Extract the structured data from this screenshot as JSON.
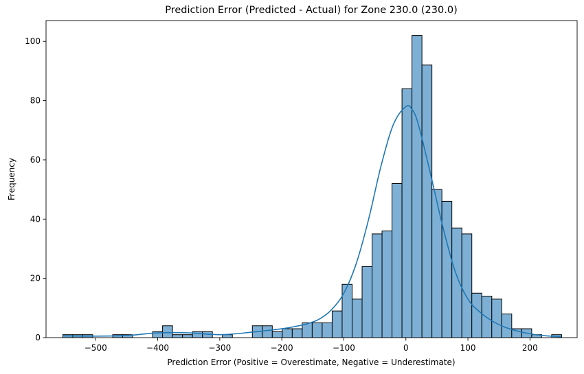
{
  "chart_data": {
    "type": "bar",
    "title": "Prediction Error (Predicted - Actual) for Zone 230.0 (230.0)",
    "xlabel": "Prediction Error (Positive = Overestimate, Negative = Underestimate)",
    "ylabel": "Frequency",
    "xlim": [
      -580,
      276
    ],
    "ylim": [
      0,
      107
    ],
    "xticks": [
      -500,
      -400,
      -300,
      -200,
      -100,
      0,
      100,
      200
    ],
    "yticks": [
      0,
      20,
      40,
      60,
      80,
      100
    ],
    "grid": false,
    "bin_start": -553,
    "bin_width": 16.08,
    "counts": [
      1,
      1,
      1,
      0,
      0,
      1,
      1,
      0,
      0,
      2,
      4,
      1,
      1,
      2,
      2,
      0,
      1,
      0,
      0,
      4,
      4,
      2,
      3,
      3,
      5,
      5,
      5,
      9,
      18,
      13,
      24,
      35,
      36,
      52,
      84,
      102,
      92,
      50,
      46,
      37,
      35,
      15,
      14,
      13,
      8,
      3,
      3,
      1,
      0,
      1
    ],
    "kde": {
      "x": [
        -553,
        -500,
        -450,
        -400,
        -350,
        -300,
        -250,
        -200,
        -180,
        -160,
        -140,
        -120,
        -100,
        -80,
        -60,
        -40,
        -20,
        0,
        10,
        20,
        40,
        60,
        80,
        100,
        120,
        140,
        160,
        180,
        200,
        220,
        250
      ],
      "y": [
        0.6,
        0.5,
        0.7,
        1.6,
        1.6,
        1.0,
        1.8,
        3.0,
        3.7,
        4.6,
        6.2,
        9.4,
        15,
        25,
        40,
        58,
        72,
        78,
        77,
        72,
        55,
        37,
        22,
        13,
        8.5,
        5.5,
        3.5,
        2.2,
        1.3,
        0.7,
        0.3
      ]
    }
  }
}
